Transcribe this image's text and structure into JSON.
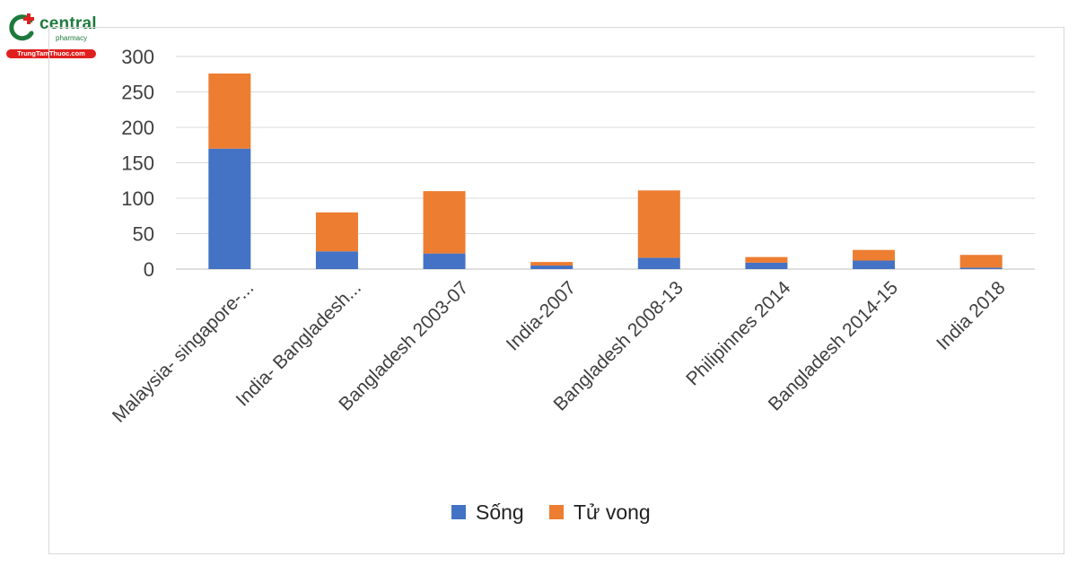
{
  "logo": {
    "name": "central",
    "sub": "pharmacy",
    "url": "TrungTamThuoc.com",
    "brand_green": "#1e7a3c",
    "brand_red": "#e0201e"
  },
  "chart_data": {
    "type": "bar",
    "stacked": true,
    "categories": [
      "Malaysia- singapore-...",
      "India- Bangladesh...",
      "Bangladesh 2003-07",
      "India-2007",
      "Bangladesh 2008-13",
      "Philipinnes 2014",
      "Bangladesh 2014-15",
      "India 2018"
    ],
    "series": [
      {
        "name": "Sống",
        "color": "#4472c4",
        "values": [
          170,
          25,
          22,
          5,
          16,
          9,
          12,
          2
        ]
      },
      {
        "name": "Tử vong",
        "color": "#ed7d31",
        "values": [
          106,
          55,
          88,
          5,
          95,
          8,
          15,
          18
        ]
      }
    ],
    "yticks": [
      "0",
      "50",
      "100",
      "150",
      "200",
      "250",
      "300"
    ],
    "ylim": [
      0,
      300
    ],
    "grid": true,
    "legend_position": "bottom"
  }
}
